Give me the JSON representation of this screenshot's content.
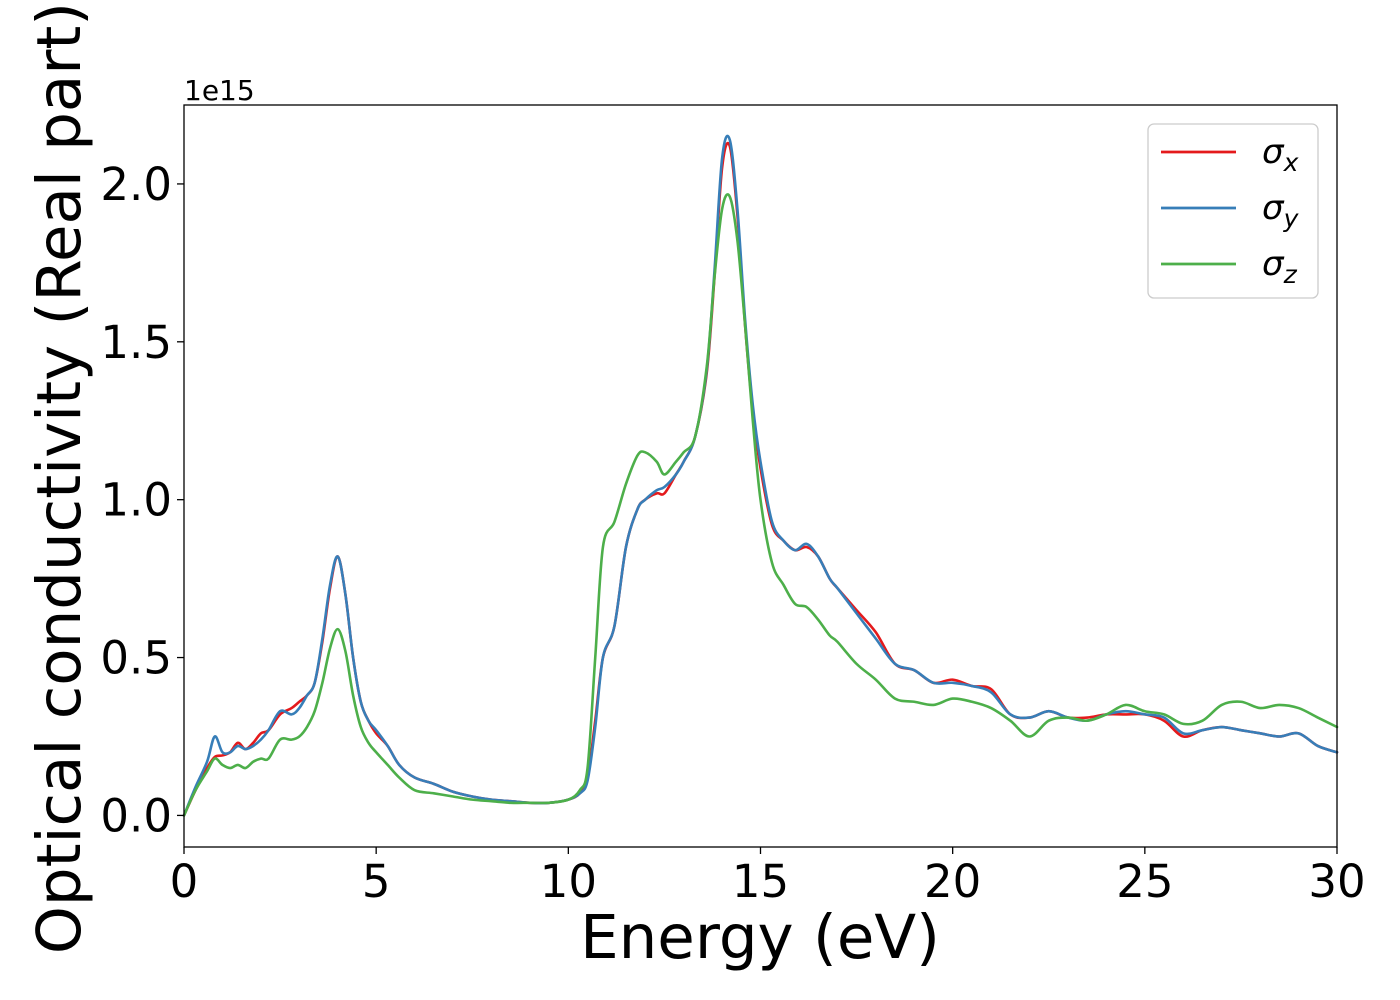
{
  "chart_data": {
    "type": "line",
    "xlabel": "Energy (eV)",
    "ylabel": "Optical conductivity (Real part)",
    "y_offset_text": "1e15",
    "y_scale_factor": 1000000000000000.0,
    "xlim": [
      0,
      30
    ],
    "ylim": [
      -0.1,
      2.25
    ],
    "x_ticks": [
      0,
      5,
      10,
      15,
      20,
      25,
      30
    ],
    "x_tick_labels": [
      "0",
      "5",
      "10",
      "15",
      "20",
      "25",
      "30"
    ],
    "y_ticks": [
      0.0,
      0.5,
      1.0,
      1.5,
      2.0
    ],
    "y_tick_labels": [
      "0.0",
      "0.5",
      "1.0",
      "1.5",
      "2.0"
    ],
    "grid": false,
    "legend_position": "upper right",
    "series": [
      {
        "name": "σx",
        "name_base": "σ",
        "name_sub": "x",
        "color": "#e41a1c",
        "x": [
          0,
          0.3,
          0.6,
          0.8,
          1.0,
          1.2,
          1.4,
          1.6,
          1.8,
          2.0,
          2.2,
          2.5,
          2.8,
          3.0,
          3.2,
          3.4,
          3.6,
          3.8,
          4.0,
          4.2,
          4.4,
          4.6,
          4.8,
          5.0,
          5.3,
          5.6,
          6.0,
          6.5,
          7.0,
          7.5,
          8.0,
          8.5,
          9.0,
          9.5,
          10.0,
          10.3,
          10.5,
          10.7,
          10.9,
          11.2,
          11.5,
          11.8,
          12.0,
          12.3,
          12.5,
          12.8,
          13.0,
          13.3,
          13.6,
          13.8,
          14.0,
          14.2,
          14.4,
          14.6,
          14.8,
          15.0,
          15.3,
          15.6,
          15.9,
          16.2,
          16.5,
          16.8,
          17.0,
          17.5,
          18.0,
          18.5,
          19.0,
          19.5,
          20.0,
          20.5,
          21.0,
          21.5,
          22.0,
          22.5,
          23.0,
          23.5,
          24.0,
          24.5,
          25.0,
          25.5,
          26.0,
          26.5,
          27.0,
          27.5,
          28.0,
          28.5,
          29.0,
          29.5,
          30.0
        ],
        "values": [
          0.0,
          0.08,
          0.15,
          0.185,
          0.19,
          0.2,
          0.23,
          0.21,
          0.23,
          0.26,
          0.27,
          0.32,
          0.34,
          0.36,
          0.38,
          0.42,
          0.55,
          0.72,
          0.82,
          0.7,
          0.5,
          0.36,
          0.3,
          0.26,
          0.22,
          0.16,
          0.12,
          0.1,
          0.075,
          0.06,
          0.05,
          0.045,
          0.04,
          0.04,
          0.05,
          0.07,
          0.12,
          0.3,
          0.5,
          0.6,
          0.85,
          0.97,
          1.0,
          1.02,
          1.02,
          1.08,
          1.12,
          1.2,
          1.4,
          1.7,
          2.05,
          2.12,
          1.9,
          1.55,
          1.28,
          1.1,
          0.92,
          0.87,
          0.84,
          0.85,
          0.82,
          0.75,
          0.72,
          0.65,
          0.58,
          0.48,
          0.46,
          0.42,
          0.43,
          0.41,
          0.4,
          0.32,
          0.31,
          0.33,
          0.31,
          0.31,
          0.32,
          0.32,
          0.32,
          0.3,
          0.25,
          0.27,
          0.28,
          0.27,
          0.26,
          0.25,
          0.26,
          0.22,
          0.2
        ]
      },
      {
        "name": "σy",
        "name_base": "σ",
        "name_sub": "y",
        "color": "#377eb8",
        "x": [
          0,
          0.3,
          0.6,
          0.8,
          1.0,
          1.2,
          1.4,
          1.6,
          1.8,
          2.0,
          2.2,
          2.5,
          2.8,
          3.0,
          3.2,
          3.4,
          3.6,
          3.8,
          4.0,
          4.2,
          4.4,
          4.6,
          4.8,
          5.0,
          5.3,
          5.6,
          6.0,
          6.5,
          7.0,
          7.5,
          8.0,
          8.5,
          9.0,
          9.5,
          10.0,
          10.3,
          10.5,
          10.7,
          10.9,
          11.2,
          11.5,
          11.8,
          12.0,
          12.3,
          12.5,
          12.8,
          13.0,
          13.3,
          13.6,
          13.8,
          14.0,
          14.2,
          14.4,
          14.6,
          14.8,
          15.0,
          15.3,
          15.6,
          15.9,
          16.2,
          16.5,
          16.8,
          17.0,
          17.5,
          18.0,
          18.5,
          19.0,
          19.5,
          20.0,
          20.5,
          21.0,
          21.5,
          22.0,
          22.5,
          23.0,
          23.5,
          24.0,
          24.5,
          25.0,
          25.5,
          26.0,
          26.5,
          27.0,
          27.5,
          28.0,
          28.5,
          29.0,
          29.5,
          30.0
        ],
        "values": [
          0.0,
          0.09,
          0.17,
          0.25,
          0.2,
          0.2,
          0.22,
          0.21,
          0.22,
          0.24,
          0.27,
          0.33,
          0.32,
          0.34,
          0.38,
          0.42,
          0.56,
          0.73,
          0.82,
          0.7,
          0.5,
          0.36,
          0.3,
          0.27,
          0.22,
          0.16,
          0.12,
          0.1,
          0.075,
          0.06,
          0.05,
          0.045,
          0.04,
          0.04,
          0.05,
          0.07,
          0.11,
          0.28,
          0.5,
          0.6,
          0.85,
          0.97,
          1.0,
          1.03,
          1.04,
          1.08,
          1.12,
          1.2,
          1.41,
          1.72,
          2.08,
          2.14,
          1.92,
          1.57,
          1.3,
          1.12,
          0.93,
          0.87,
          0.84,
          0.86,
          0.82,
          0.75,
          0.72,
          0.64,
          0.56,
          0.48,
          0.46,
          0.42,
          0.42,
          0.41,
          0.39,
          0.32,
          0.31,
          0.33,
          0.31,
          0.3,
          0.32,
          0.33,
          0.32,
          0.31,
          0.26,
          0.27,
          0.28,
          0.27,
          0.26,
          0.25,
          0.26,
          0.22,
          0.2
        ]
      },
      {
        "name": "σz",
        "name_base": "σ",
        "name_sub": "z",
        "color": "#4daf4a",
        "x": [
          0,
          0.3,
          0.6,
          0.8,
          1.0,
          1.2,
          1.4,
          1.6,
          1.8,
          2.0,
          2.2,
          2.5,
          2.8,
          3.0,
          3.2,
          3.4,
          3.6,
          3.8,
          4.0,
          4.2,
          4.4,
          4.6,
          4.8,
          5.0,
          5.3,
          5.6,
          6.0,
          6.5,
          7.0,
          7.5,
          8.0,
          8.5,
          9.0,
          9.5,
          10.0,
          10.3,
          10.5,
          10.7,
          10.9,
          11.2,
          11.5,
          11.8,
          12.0,
          12.3,
          12.5,
          12.8,
          13.0,
          13.3,
          13.6,
          13.8,
          14.0,
          14.2,
          14.4,
          14.6,
          14.8,
          15.0,
          15.3,
          15.6,
          15.9,
          16.2,
          16.5,
          16.8,
          17.0,
          17.5,
          18.0,
          18.5,
          19.0,
          19.5,
          20.0,
          20.5,
          21.0,
          21.5,
          22.0,
          22.5,
          23.0,
          23.5,
          24.0,
          24.5,
          25.0,
          25.5,
          26.0,
          26.5,
          27.0,
          27.5,
          28.0,
          28.5,
          29.0,
          29.5,
          30.0
        ],
        "values": [
          0.0,
          0.08,
          0.14,
          0.18,
          0.16,
          0.15,
          0.16,
          0.15,
          0.17,
          0.18,
          0.18,
          0.24,
          0.24,
          0.25,
          0.28,
          0.33,
          0.42,
          0.53,
          0.59,
          0.52,
          0.38,
          0.28,
          0.23,
          0.2,
          0.16,
          0.12,
          0.08,
          0.07,
          0.06,
          0.05,
          0.045,
          0.04,
          0.04,
          0.04,
          0.05,
          0.08,
          0.15,
          0.5,
          0.85,
          0.93,
          1.05,
          1.14,
          1.15,
          1.12,
          1.08,
          1.12,
          1.15,
          1.2,
          1.42,
          1.7,
          1.92,
          1.96,
          1.82,
          1.55,
          1.25,
          1.0,
          0.8,
          0.73,
          0.67,
          0.66,
          0.62,
          0.57,
          0.55,
          0.48,
          0.43,
          0.37,
          0.36,
          0.35,
          0.37,
          0.36,
          0.34,
          0.3,
          0.25,
          0.3,
          0.31,
          0.3,
          0.32,
          0.35,
          0.33,
          0.32,
          0.29,
          0.3,
          0.35,
          0.36,
          0.34,
          0.35,
          0.34,
          0.31,
          0.28
        ]
      }
    ]
  }
}
